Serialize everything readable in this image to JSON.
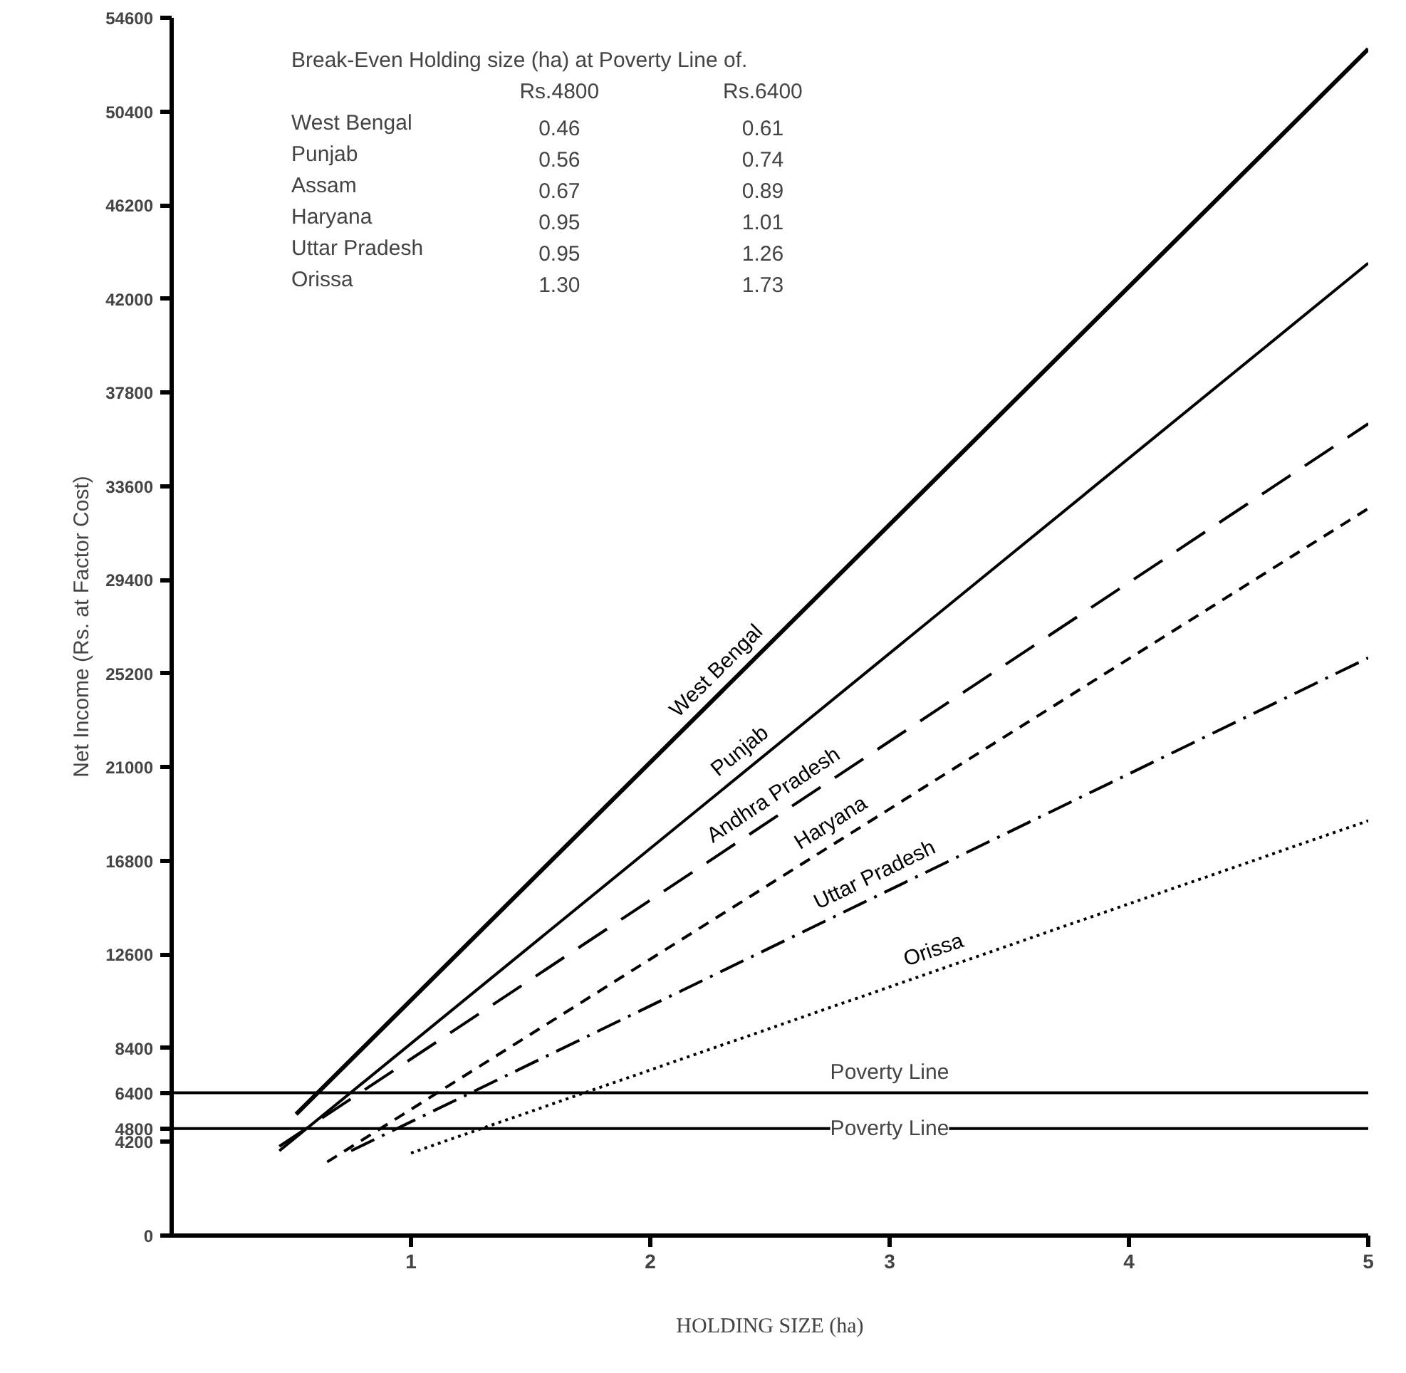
{
  "chart_data": {
    "type": "line",
    "xlabel": "HOLDING SIZE (ha)",
    "ylabel": "Net Income (Rs. at Factor Cost)",
    "xlim": [
      0,
      5
    ],
    "xticks": [
      1,
      2,
      3,
      4,
      5
    ],
    "ylim": [
      0,
      54600
    ],
    "yticks": [
      0,
      4200,
      4800,
      6400,
      8400,
      12600,
      16800,
      21000,
      25200,
      29400,
      33600,
      37800,
      42000,
      46200,
      50400,
      54600
    ],
    "grid": false,
    "marker": "none",
    "series": [
      {
        "name": "West Bengal",
        "color": "#000000",
        "line_style": "solid",
        "x": [
          0.52,
          5
        ],
        "values": [
          5440,
          53200
        ]
      },
      {
        "name": "Punjab",
        "color": "#000000",
        "line_style": "solid",
        "x": [
          0.45,
          5
        ],
        "values": [
          3800,
          43600
        ]
      },
      {
        "name": "Andhra Pradesh",
        "color": "#000000",
        "line_style": "longdash",
        "x": [
          0.45,
          5
        ],
        "values": [
          4000,
          36400
        ]
      },
      {
        "name": "Haryana",
        "color": "#000000",
        "line_style": "dashed",
        "x": [
          0.65,
          5
        ],
        "values": [
          3300,
          32600
        ]
      },
      {
        "name": "Uttar Pradesh",
        "color": "#000000",
        "line_style": "dashdot",
        "x": [
          0.75,
          5
        ],
        "values": [
          3800,
          25900
        ]
      },
      {
        "name": "Orissa",
        "color": "#000000",
        "line_style": "dotted",
        "x": [
          1.0,
          5
        ],
        "values": [
          3700,
          18600
        ]
      }
    ],
    "ref_lines": [
      {
        "axis": "y",
        "value": 6400,
        "label": "Poverty Line",
        "color": "#000000",
        "line_style": "solid"
      },
      {
        "axis": "y",
        "value": 4800,
        "label": "Poverty Line",
        "color": "#000000",
        "line_style": "solid"
      }
    ],
    "annotations": [
      "Break-Even Holding size (ha) at Poverty Line of.",
      "Rs.4800",
      "Rs.6400",
      "West Bengal",
      "0.46",
      "0.61",
      "Punjab",
      "0.56",
      "0.74",
      "Assam",
      "0.67",
      "0.89",
      "Haryana",
      "0.95",
      "1.01",
      "Uttar Pradesh",
      "0.95",
      "1.26",
      "Orissa",
      "1.30",
      "1.73"
    ]
  }
}
